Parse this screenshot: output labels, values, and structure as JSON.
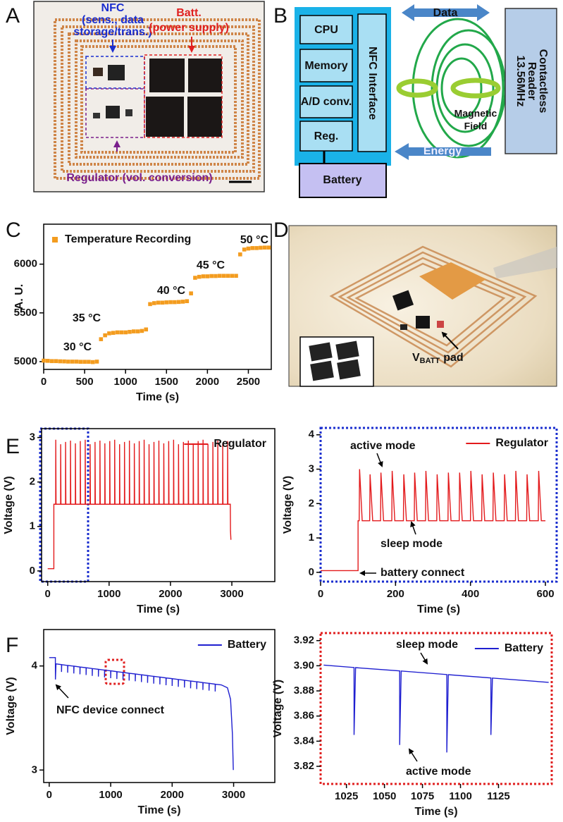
{
  "panel_labels": [
    "A",
    "B",
    "C",
    "D",
    "E",
    "F"
  ],
  "panel_a": {
    "nfc_label": [
      "NFC",
      "(sens., data",
      "storage/trans.)"
    ],
    "batt_label": [
      "Batt.",
      "(power supply)"
    ],
    "regulator_label": "Regulator (vol. conversion)"
  },
  "panel_b": {
    "blocks": [
      "CPU",
      "Memory",
      "A/D conv.",
      "Reg."
    ],
    "interface": "NFC Interface",
    "battery": "Battery",
    "data_arrow": "Data",
    "energy_arrow": "Energy",
    "field_label": [
      "Magnetic",
      "Field"
    ],
    "reader_label": [
      "Contactless",
      "Reader",
      "13.56MHz"
    ]
  },
  "panel_d": {
    "label": [
      "V",
      "BATT",
      "pad"
    ]
  },
  "chart_data": [
    {
      "type": "scatter",
      "xlabel": "Time (s)",
      "ylabel": "A. U.",
      "legend": "upper left",
      "frame_color": "#000000",
      "frame_style": "solid",
      "x": [
        0,
        50,
        100,
        150,
        200,
        250,
        300,
        350,
        400,
        450,
        500,
        550,
        600,
        650,
        700,
        750,
        800,
        850,
        900,
        950,
        1000,
        1050,
        1100,
        1150,
        1200,
        1250,
        1300,
        1350,
        1400,
        1450,
        1500,
        1550,
        1600,
        1650,
        1700,
        1750,
        1800,
        1850,
        1900,
        1950,
        2000,
        2050,
        2100,
        2150,
        2200,
        2250,
        2300,
        2350,
        2400,
        2450,
        2500,
        2550,
        2600,
        2650,
        2700,
        2750
      ],
      "series": [
        {
          "name": "Temperature Recording",
          "color": "#f39c1f",
          "values": [
            5010,
            5008,
            5005,
            5005,
            5003,
            5002,
            5000,
            5000,
            5000,
            4998,
            4998,
            4998,
            4995,
            5000,
            5230,
            5270,
            5290,
            5295,
            5300,
            5300,
            5300,
            5305,
            5310,
            5310,
            5315,
            5330,
            5590,
            5600,
            5605,
            5605,
            5608,
            5610,
            5610,
            5612,
            5615,
            5620,
            5700,
            5860,
            5870,
            5875,
            5875,
            5878,
            5878,
            5880,
            5880,
            5880,
            5880,
            5880,
            6100,
            6150,
            6160,
            6165,
            6165,
            6168,
            6170,
            6170
          ]
        }
      ],
      "xlim": [
        0,
        2780
      ],
      "ylim": [
        4920,
        6410
      ],
      "xticks": [
        0,
        500,
        1000,
        1500,
        2000,
        2500
      ],
      "yticks": [
        5000,
        5500,
        6000
      ],
      "annotations": [
        "30 °C",
        "35 °C",
        "40 °C",
        "45 °C",
        "50 °C"
      ]
    },
    {
      "type": "line",
      "xlabel": "Time (s)",
      "ylabel": "Voltage (V)",
      "legend": "upper right",
      "frame_color": "#000000",
      "frame_style": "solid",
      "x": [
        0,
        100,
        100,
        130,
        131,
        136,
        210,
        211,
        216,
        290,
        291,
        296,
        370,
        371,
        376,
        450,
        451,
        456,
        530,
        531,
        536,
        610,
        611,
        616,
        690,
        691,
        696,
        770,
        771,
        776,
        850,
        851,
        856,
        930,
        931,
        936,
        1010,
        1011,
        1016,
        1090,
        1091,
        1096,
        1170,
        1171,
        1176,
        1250,
        1251,
        1256,
        1330,
        1331,
        1336,
        1410,
        1411,
        1416,
        1490,
        1491,
        1496,
        1570,
        1571,
        1576,
        1650,
        1651,
        1656,
        1730,
        1731,
        1736,
        1810,
        1811,
        1816,
        1890,
        1891,
        1896,
        1970,
        1971,
        1976,
        2050,
        2051,
        2056,
        2130,
        2131,
        2136,
        2210,
        2211,
        2216,
        2290,
        2291,
        2296,
        2370,
        2371,
        2376,
        2450,
        2451,
        2456,
        2530,
        2531,
        2536,
        2610,
        2611,
        2616,
        2690,
        2691,
        2696,
        2770,
        2771,
        2776,
        2850,
        2851,
        2856,
        2930,
        2931,
        2936,
        2975,
        2978,
        2985
      ],
      "series": [
        {
          "name": "Regulator",
          "color": "#e31a1c",
          "values": [
            0.05,
            0.05,
            1.5,
            1.5,
            2.95,
            1.5,
            1.5,
            2.85,
            1.5,
            1.5,
            2.9,
            1.5,
            1.5,
            2.93,
            1.5,
            1.5,
            2.87,
            1.5,
            1.5,
            2.92,
            1.5,
            1.5,
            2.95,
            1.5,
            1.5,
            2.85,
            1.5,
            1.5,
            2.9,
            1.5,
            1.5,
            2.93,
            1.5,
            1.5,
            2.87,
            1.5,
            1.5,
            2.92,
            1.5,
            1.5,
            2.95,
            1.5,
            1.5,
            2.85,
            1.5,
            1.5,
            2.9,
            1.5,
            1.5,
            2.93,
            1.5,
            1.5,
            2.87,
            1.5,
            1.5,
            2.92,
            1.5,
            1.5,
            2.95,
            1.5,
            1.5,
            2.85,
            1.5,
            1.5,
            2.9,
            1.5,
            1.5,
            2.93,
            1.5,
            1.5,
            2.87,
            1.5,
            1.5,
            2.92,
            1.5,
            1.5,
            2.95,
            1.5,
            1.5,
            2.85,
            1.5,
            1.5,
            2.9,
            1.5,
            1.5,
            2.93,
            1.5,
            1.5,
            2.87,
            1.5,
            1.5,
            2.92,
            1.5,
            1.5,
            2.95,
            1.5,
            1.5,
            2.85,
            1.5,
            1.5,
            2.9,
            1.5,
            1.5,
            2.93,
            1.5,
            1.5,
            2.87,
            1.5,
            1.5,
            2.92,
            1.5,
            1.5,
            0.9,
            0.7
          ]
        }
      ],
      "xlim": [
        -100,
        3700
      ],
      "ylim": [
        -0.24,
        3.2
      ],
      "xticks": [
        0,
        1000,
        2000,
        3000
      ],
      "yticks": [
        0,
        1,
        2,
        3
      ],
      "annotations": []
    },
    {
      "type": "line",
      "xlabel": "Time (s)",
      "ylabel": "Voltage (V)",
      "legend": "upper right",
      "frame_color": "#1a2ecf",
      "frame_style": "dotted",
      "x": [
        0,
        100,
        100,
        103,
        104,
        111,
        131,
        132,
        139,
        160,
        161,
        168,
        190,
        191,
        198,
        221,
        222,
        229,
        250,
        251,
        258,
        280,
        281,
        288,
        310,
        311,
        318,
        340,
        341,
        348,
        370,
        371,
        378,
        400,
        401,
        408,
        430,
        431,
        438,
        460,
        461,
        468,
        490,
        491,
        498,
        520,
        521,
        528,
        550,
        551,
        558,
        581,
        582,
        589,
        600
      ],
      "series": [
        {
          "name": "Regulator",
          "color": "#e31a1c",
          "values": [
            0.05,
            0.05,
            1.5,
            1.5,
            3.0,
            1.5,
            1.5,
            2.85,
            1.5,
            1.5,
            2.9,
            1.5,
            1.5,
            2.95,
            1.5,
            1.5,
            2.85,
            1.5,
            1.5,
            2.9,
            1.5,
            1.5,
            2.95,
            1.5,
            1.5,
            2.85,
            1.5,
            1.5,
            2.9,
            1.5,
            1.5,
            2.9,
            1.5,
            1.5,
            2.95,
            1.5,
            1.5,
            2.85,
            1.5,
            1.5,
            2.9,
            1.5,
            1.5,
            2.85,
            1.5,
            1.5,
            2.95,
            1.5,
            1.5,
            2.85,
            1.5,
            1.5,
            2.95,
            1.5,
            1.5
          ]
        }
      ],
      "xlim": [
        0,
        630
      ],
      "ylim": [
        -0.27,
        4.2
      ],
      "xticks": [
        0,
        200,
        400,
        600
      ],
      "yticks": [
        0,
        1,
        2,
        3,
        4
      ],
      "annotations": [
        "active mode",
        "sleep mode",
        "battery connect"
      ]
    },
    {
      "type": "line",
      "xlabel": "Time (s)",
      "ylabel": "Voltage (V)",
      "legend": "upper right",
      "frame_color": "#000000",
      "frame_style": "solid",
      "x": [
        0,
        100,
        101,
        110,
        200,
        200,
        203,
        300,
        300,
        303,
        400,
        400,
        403,
        500,
        500,
        503,
        600,
        600,
        603,
        700,
        700,
        703,
        800,
        800,
        803,
        900,
        900,
        903,
        1000,
        1000,
        1003,
        1100,
        1100,
        1103,
        1200,
        1200,
        1203,
        1300,
        1300,
        1303,
        1400,
        1400,
        1403,
        1500,
        1500,
        1503,
        1600,
        1600,
        1603,
        1700,
        1700,
        1703,
        1800,
        1800,
        1803,
        1900,
        1900,
        1903,
        2000,
        2000,
        2003,
        2100,
        2100,
        2103,
        2200,
        2200,
        2203,
        2300,
        2300,
        2303,
        2400,
        2400,
        2403,
        2500,
        2500,
        2503,
        2600,
        2600,
        2603,
        2700,
        2700,
        2703,
        2800,
        2900,
        2950,
        2980,
        2995
      ],
      "series": [
        {
          "name": "Battery",
          "color": "#1f1fd0",
          "values": [
            4.08,
            4.08,
            3.87,
            4.02,
            4.013,
            3.943,
            4.013,
            4.005,
            3.935,
            4.005,
            3.998,
            3.928,
            3.998,
            3.99,
            3.92,
            3.99,
            3.983,
            3.913,
            3.983,
            3.975,
            3.905,
            3.975,
            3.968,
            3.898,
            3.968,
            3.96,
            3.89,
            3.96,
            3.953,
            3.883,
            3.953,
            3.945,
            3.875,
            3.945,
            3.938,
            3.868,
            3.938,
            3.93,
            3.86,
            3.93,
            3.923,
            3.853,
            3.923,
            3.915,
            3.845,
            3.915,
            3.908,
            3.838,
            3.908,
            3.9,
            3.83,
            3.9,
            3.893,
            3.823,
            3.893,
            3.885,
            3.815,
            3.885,
            3.878,
            3.808,
            3.878,
            3.87,
            3.8,
            3.87,
            3.863,
            3.793,
            3.863,
            3.855,
            3.785,
            3.855,
            3.848,
            3.778,
            3.848,
            3.84,
            3.77,
            3.84,
            3.833,
            3.763,
            3.833,
            3.825,
            3.755,
            3.825,
            3.818,
            3.79,
            3.68,
            3.35,
            3.0
          ]
        }
      ],
      "xlim": [
        -90,
        3670
      ],
      "ylim": [
        2.88,
        4.35
      ],
      "xticks": [
        0,
        1000,
        2000,
        3000
      ],
      "yticks": [
        3,
        4
      ],
      "annotations": [
        "NFC device connect"
      ]
    },
    {
      "type": "line",
      "xlabel": "Time (s)",
      "ylabel": "Voltage (V)",
      "legend": "upper right",
      "frame_color": "#e02020",
      "frame_style": "dotted",
      "x": [
        1010,
        1030,
        1030,
        1031,
        1060,
        1060,
        1061,
        1091,
        1091,
        1092,
        1120,
        1120,
        1121,
        1158
      ],
      "series": [
        {
          "name": "Battery",
          "color": "#1f1fd0",
          "values": [
            3.9005,
            3.8986,
            3.845,
            3.8985,
            3.8959,
            3.837,
            3.8958,
            3.893,
            3.831,
            3.8929,
            3.8903,
            3.845,
            3.8902,
            3.8868
          ]
        }
      ],
      "xlim": [
        1008,
        1160
      ],
      "ylim": [
        3.806,
        3.926
      ],
      "xticks": [
        1025,
        1050,
        1075,
        1100,
        1125
      ],
      "yticks": [
        3.82,
        3.84,
        3.86,
        3.88,
        {
          "value": 3.9,
          "label": "3.90"
        },
        3.92
      ],
      "annotations": [
        "sleep mode",
        "active mode"
      ]
    }
  ]
}
